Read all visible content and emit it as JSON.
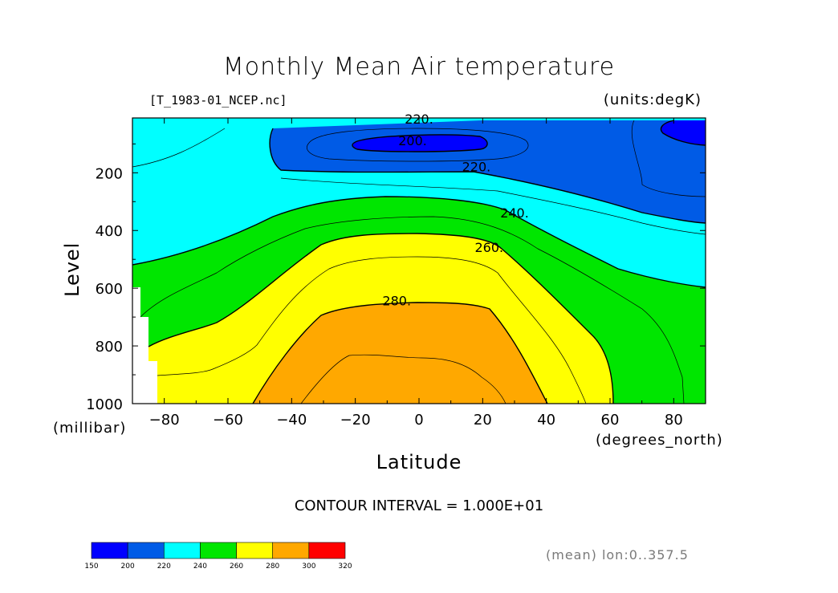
{
  "chart_data": {
    "type": "heatmap",
    "title": "Monthly Mean Air temperature",
    "subtitle": "[T_1983-01_NCEP.nc]",
    "units_label": "(units:degK)",
    "xlabel": "Latitude",
    "ylabel": "Level",
    "x_unit": "(degrees_north)",
    "y_unit": "(millibar)",
    "xlim": [
      -90,
      90
    ],
    "ylim": [
      1000,
      10
    ],
    "x_ticks": [
      "-80",
      "-60",
      "-40",
      "-20",
      "0",
      "20",
      "40",
      "60",
      "80"
    ],
    "x_tick_values": [
      -80,
      -60,
      -40,
      -20,
      0,
      20,
      40,
      60,
      80
    ],
    "y_ticks": [
      "200",
      "400",
      "600",
      "800",
      "1000"
    ],
    "y_tick_values": [
      200,
      400,
      600,
      800,
      1000
    ],
    "contour_interval": "CONTOUR INTERVAL = 1.000E+01",
    "contour_labels": [
      {
        "text": "220.",
        "lat": 0,
        "level": 30
      },
      {
        "text": "200.",
        "lat": -2,
        "level": 105
      },
      {
        "text": "220.",
        "lat": 18,
        "level": 195
      },
      {
        "text": "240.",
        "lat": 30,
        "level": 355
      },
      {
        "text": "260.",
        "lat": 22,
        "level": 475
      },
      {
        "text": "280.",
        "lat": -7,
        "level": 660
      }
    ],
    "colorbar": {
      "levels": [
        150,
        200,
        220,
        240,
        260,
        280,
        300,
        320
      ],
      "labels": [
        "150",
        "200",
        "220",
        "240",
        "260",
        "280",
        "300",
        "320"
      ],
      "colors": [
        "#0000ff",
        "#005be6",
        "#00ffff",
        "#00e600",
        "#ffff00",
        "#ffa800",
        "#ff0000"
      ]
    },
    "grid": false
  },
  "annotation": "(mean) lon:0..357.5"
}
